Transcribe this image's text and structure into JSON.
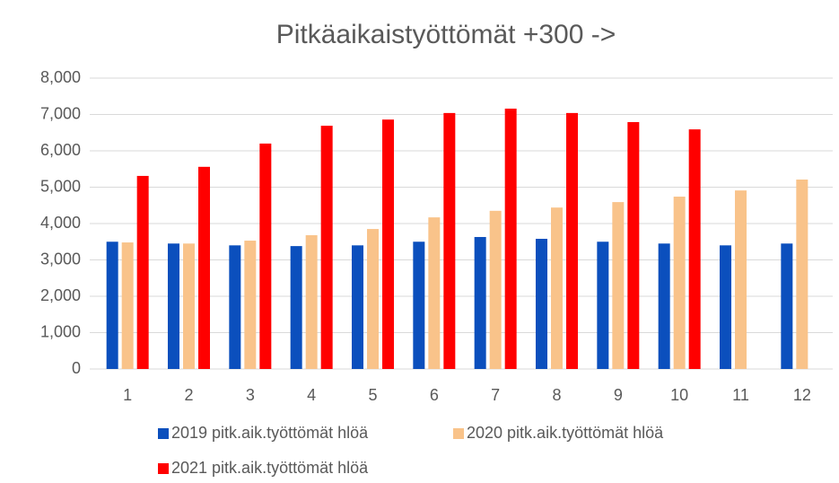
{
  "chart_data": {
    "type": "bar",
    "title": "Pitkäaikaistyöttömät +300 ->",
    "categories": [
      "1",
      "2",
      "3",
      "4",
      "5",
      "6",
      "7",
      "8",
      "9",
      "10",
      "11",
      "12"
    ],
    "series": [
      {
        "name": "2019 pitk.aik.työttömät hlöä",
        "color": "#0b4fbd",
        "values": [
          3500,
          3450,
          3400,
          3380,
          3400,
          3500,
          3630,
          3580,
          3500,
          3450,
          3400,
          3450
        ]
      },
      {
        "name": "2020 pitk.aik.työttömät hlöä",
        "color": "#f9c38a",
        "values": [
          3480,
          3450,
          3530,
          3680,
          3850,
          4170,
          4350,
          4440,
          4590,
          4740,
          4910,
          5210
        ]
      },
      {
        "name": "2021 pitk.aik.työttömät hlöä",
        "color": "#ff0000",
        "values": [
          5310,
          5560,
          6200,
          6690,
          6860,
          7040,
          7160,
          7040,
          6790,
          6590,
          null,
          null
        ]
      }
    ],
    "ylim": [
      0,
      8000
    ],
    "yticks": [
      0,
      {
        "value": 1000,
        "label": "1,000"
      },
      {
        "value": 2000,
        "label": "2,000"
      },
      {
        "value": 3000,
        "label": "3,000"
      },
      {
        "value": 4000,
        "label": "4,000"
      },
      {
        "value": 5000,
        "label": "5,000"
      },
      {
        "value": 6000,
        "label": "6,000"
      },
      {
        "value": 7000,
        "label": "7,000"
      },
      {
        "value": 8000,
        "label": "8,000"
      }
    ],
    "grid": true,
    "legend": "bottom"
  }
}
